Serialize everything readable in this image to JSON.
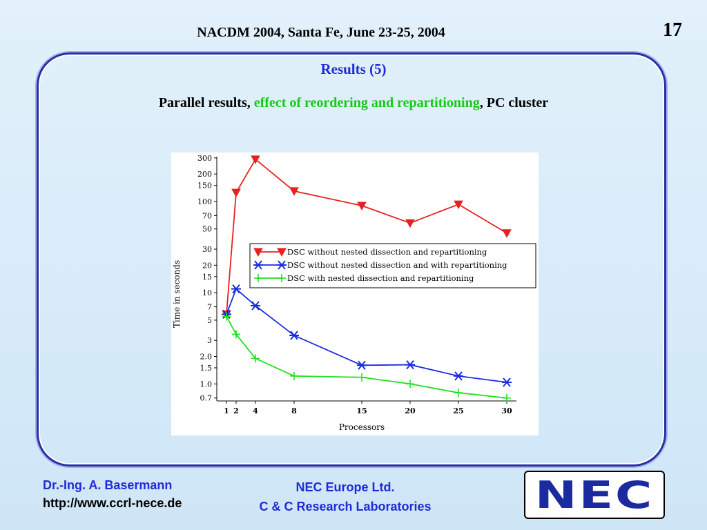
{
  "header": {
    "title": "NACDM 2004, Santa Fe, June 23-25, 2004",
    "slide_number": "17"
  },
  "section_title": "Results (5)",
  "subtitle": {
    "part1": "Parallel results, ",
    "highlight": "effect of reordering and repartitioning",
    "part2": ", PC cluster"
  },
  "footer": {
    "author": "Dr.-Ing. A. Basermann",
    "url": "http://www.ccrl-nece.de",
    "org_line1": "NEC Europe Ltd.",
    "org_line2": "C & C Research Laboratories",
    "logo_text": "NEC"
  },
  "colors": {
    "accent_blue": "#1f2bd6",
    "highlight_green": "#17c917",
    "series_red": "#e8201f",
    "series_blue": "#1a2be0",
    "series_green": "#1fe01f"
  },
  "chart_data": {
    "type": "line",
    "xlabel": "Processors",
    "ylabel": "Time in seconds",
    "yscale": "log",
    "ylim": [
      0.65,
      310
    ],
    "xlim": [
      0,
      31
    ],
    "x_ticks": [
      1,
      2,
      4,
      8,
      15,
      20,
      25,
      30
    ],
    "x_tick_labels": [
      "1",
      "2",
      "4",
      "8",
      "15",
      "20",
      "25",
      "30"
    ],
    "y_ticks": [
      0.7,
      1.0,
      1.5,
      2.0,
      3,
      5,
      7,
      10,
      15,
      20,
      30,
      50,
      70,
      100,
      150,
      200,
      300
    ],
    "y_tick_labels": [
      "0.7",
      "1.0",
      "1.5",
      "2.0",
      "3",
      "5",
      "7",
      "10",
      "15",
      "20",
      "30",
      "50",
      "70",
      "100",
      "150",
      "200",
      "300"
    ],
    "legend_position": "middle-right",
    "grid": false,
    "series": [
      {
        "name": "DSC without nested dissection and repartitioning",
        "marker": "triangle-down",
        "color": "#e8201f",
        "x": [
          1,
          2,
          4,
          8,
          15,
          20,
          25,
          30
        ],
        "y": [
          5.8,
          125,
          290,
          130,
          90,
          58,
          93,
          45
        ]
      },
      {
        "name": "DSC without nested dissection and with repartitioning",
        "marker": "asterisk",
        "color": "#1a2be0",
        "x": [
          1,
          2,
          4,
          8,
          15,
          20,
          25,
          30
        ],
        "y": [
          5.8,
          11,
          7.2,
          3.4,
          1.6,
          1.62,
          1.22,
          1.04
        ]
      },
      {
        "name": "DSC with nested dissection and repartitioning",
        "marker": "plus",
        "color": "#1fe01f",
        "x": [
          1,
          2,
          4,
          8,
          15,
          20,
          25,
          30
        ],
        "y": [
          5.5,
          3.5,
          1.9,
          1.22,
          1.18,
          1.0,
          0.8,
          0.7
        ]
      }
    ]
  }
}
